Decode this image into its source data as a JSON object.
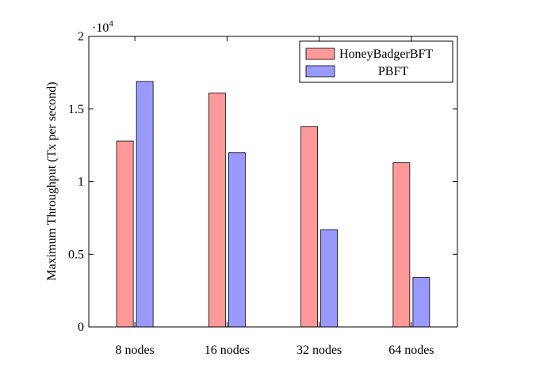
{
  "chart_data": {
    "type": "bar",
    "title": "",
    "xlabel": "",
    "ylabel": "Maximum Throughput (Tx per second)",
    "y_scale_base": "10",
    "y_scale_exponent": "4",
    "ylim": [
      0,
      20000
    ],
    "yticks": [
      0,
      5000,
      10000,
      15000,
      20000
    ],
    "ytick_labels": [
      "0",
      "0.5",
      "1",
      "1.5",
      "2"
    ],
    "categories": [
      "8 nodes",
      "16 nodes",
      "32 nodes",
      "64 nodes"
    ],
    "series": [
      {
        "name": "HoneyBadgerBFT",
        "color": "#ff9999",
        "values": [
          12800,
          16100,
          13800,
          11300
        ]
      },
      {
        "name": "PBFT",
        "color": "#9999ff",
        "values": [
          16900,
          12000,
          6700,
          3400
        ]
      }
    ],
    "grid": false,
    "legend_position": "top-right"
  }
}
